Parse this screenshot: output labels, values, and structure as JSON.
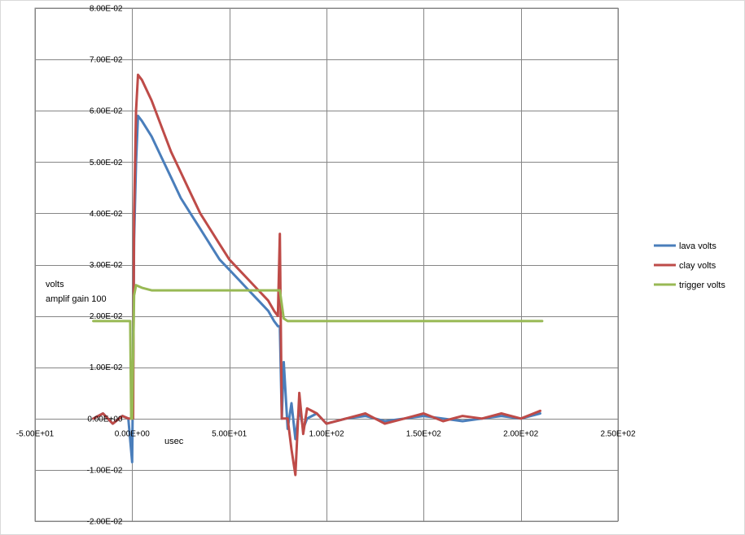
{
  "chart_data": {
    "type": "line",
    "xlabel": "usec",
    "ylabel_lines": [
      "volts",
      "amplif gain 100"
    ],
    "xlim": [
      -50,
      250
    ],
    "ylim": [
      -0.02,
      0.08
    ],
    "x_ticks": [
      -50,
      0,
      50,
      100,
      150,
      200,
      250
    ],
    "x_tick_labels": [
      "-5.00E+01",
      "0.00E+00",
      "5.00E+01",
      "1.00E+02",
      "1.50E+02",
      "2.00E+02",
      "2.50E+02"
    ],
    "y_ticks": [
      -0.02,
      -0.01,
      0,
      0.01,
      0.02,
      0.03,
      0.04,
      0.05,
      0.06,
      0.07,
      0.08
    ],
    "y_tick_labels": [
      "-2.00E-02",
      "-1.00E-02",
      "0.00E+00",
      "1.00E-02",
      "2.00E-02",
      "3.00E-02",
      "4.00E-02",
      "5.00E-02",
      "6.00E-02",
      "7.00E-02",
      "8.00E-02"
    ],
    "grid": true,
    "legend_position": "right",
    "series": [
      {
        "name": "lava volts",
        "color": "#4a7ebb",
        "x": [
          -20,
          -15,
          -10,
          -5,
          -2,
          0,
          0.5,
          1,
          2,
          3,
          5,
          10,
          15,
          20,
          25,
          30,
          35,
          40,
          45,
          50,
          55,
          60,
          65,
          70,
          73,
          75,
          76,
          77,
          78,
          80,
          82,
          84,
          86,
          88,
          90,
          95,
          100,
          110,
          120,
          130,
          140,
          150,
          160,
          170,
          180,
          190,
          200,
          210
        ],
        "y": [
          0.0,
          0.001,
          -0.001,
          0.0005,
          0.0,
          -0.0085,
          0.01,
          0.035,
          0.05,
          0.059,
          0.058,
          0.055,
          0.051,
          0.047,
          0.043,
          0.04,
          0.037,
          0.034,
          0.031,
          0.029,
          0.027,
          0.025,
          0.023,
          0.021,
          0.019,
          0.018,
          0.018,
          0.0,
          0.011,
          -0.002,
          0.003,
          -0.004,
          0.002,
          -0.002,
          0.0,
          0.001,
          -0.001,
          0.0,
          0.0005,
          -0.0005,
          0.0,
          0.0005,
          0.0,
          -0.0005,
          0.0,
          0.0005,
          0.0,
          0.001
        ]
      },
      {
        "name": "clay volts",
        "color": "#be4b48",
        "x": [
          -20,
          -15,
          -10,
          -5,
          -2,
          0,
          0.5,
          1,
          2,
          3,
          5,
          10,
          15,
          20,
          25,
          30,
          35,
          40,
          45,
          50,
          55,
          60,
          65,
          70,
          73,
          75,
          76,
          77,
          78,
          80,
          82,
          84,
          86,
          88,
          90,
          95,
          100,
          110,
          120,
          130,
          140,
          150,
          160,
          170,
          180,
          190,
          200,
          210
        ],
        "y": [
          0.0,
          0.001,
          -0.001,
          0.0005,
          0.0,
          0.0,
          0.0,
          0.04,
          0.06,
          0.067,
          0.066,
          0.062,
          0.057,
          0.052,
          0.048,
          0.044,
          0.04,
          0.037,
          0.034,
          0.031,
          0.029,
          0.027,
          0.025,
          0.023,
          0.021,
          0.02,
          0.036,
          0.0,
          0.0,
          0.0,
          -0.006,
          -0.011,
          0.005,
          -0.003,
          0.002,
          0.001,
          -0.001,
          0.0,
          0.001,
          -0.001,
          0.0,
          0.001,
          -0.0005,
          0.0005,
          0.0,
          0.001,
          0.0,
          0.0015
        ]
      },
      {
        "name": "trigger volts",
        "color": "#98b954",
        "x": [
          -20,
          -10,
          -1,
          -0.5,
          0,
          1,
          2,
          5,
          10,
          20,
          30,
          40,
          50,
          60,
          70,
          75,
          76,
          78,
          80,
          90,
          100,
          150,
          200,
          211
        ],
        "y": [
          0.019,
          0.019,
          0.019,
          0.0,
          0.0,
          0.024,
          0.026,
          0.0255,
          0.025,
          0.025,
          0.025,
          0.025,
          0.025,
          0.025,
          0.025,
          0.025,
          0.025,
          0.0195,
          0.019,
          0.019,
          0.019,
          0.019,
          0.019,
          0.019
        ]
      }
    ]
  }
}
